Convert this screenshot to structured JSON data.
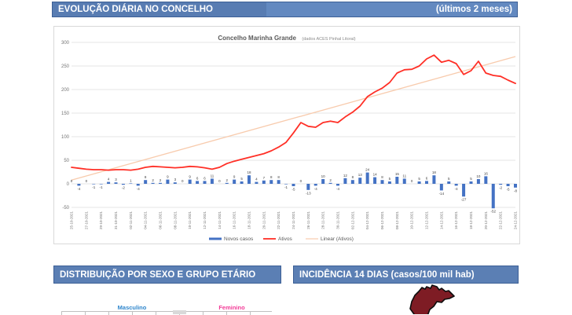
{
  "colors": {
    "header_blue": "#5b7fb4",
    "header_border": "#3d6096",
    "bar_blue": "#4472c4",
    "line_red": "#ff2f26",
    "trend_peach": "#f8cbad",
    "map_dark_red": "#7e1c24",
    "male_blue": "#2f86cc",
    "female_pink": "#f23b97",
    "gridline": "#e6e6e6",
    "axis_text": "#737373"
  },
  "top_header": {
    "title": "EVOLUÇÃO DIÁRIA NO CONCELHO",
    "period": "(últimos 2 meses)"
  },
  "chart": {
    "title": "Concelho Marinha Grande",
    "subtitle": "(dados ACES Pinhal Litoral)"
  },
  "chart_data": {
    "type": "combo",
    "x": [
      "25-10-2021",
      "26-10-2021",
      "27-10-2021",
      "28-10-2021",
      "29-10-2021",
      "30-10-2021",
      "31-10-2021",
      "01-11-2021",
      "02-11-2021",
      "03-11-2021",
      "04-11-2021",
      "05-11-2021",
      "06-11-2021",
      "07-11-2021",
      "08-11-2021",
      "09-11-2021",
      "10-11-2021",
      "11-11-2021",
      "12-11-2021",
      "13-11-2021",
      "14-11-2021",
      "15-11-2021",
      "16-11-2021",
      "17-11-2021",
      "18-11-2021",
      "19-11-2021",
      "20-11-2021",
      "21-11-2021",
      "22-11-2021",
      "23-11-2021",
      "24-11-2021",
      "25-11-2021",
      "26-11-2021",
      "27-11-2021",
      "28-11-2021",
      "29-11-2021",
      "30-11-2021",
      "01-12-2021",
      "02-12-2021",
      "03-12-2021",
      "04-12-2021",
      "05-12-2021",
      "06-12-2021",
      "07-12-2021",
      "08-12-2021",
      "09-12-2021",
      "10-12-2021",
      "11-12-2021",
      "12-12-2021",
      "13-12-2021",
      "14-12-2021",
      "15-12-2021",
      "16-12-2021",
      "17-12-2021",
      "18-12-2021",
      "19-12-2021",
      "20-12-2021",
      "21-12-2021",
      "22-12-2021",
      "23-12-2021",
      "24-12-2021"
    ],
    "series": [
      {
        "name": "Novos casos",
        "type": "bar",
        "color": "#4472c4",
        "values": [
          0,
          -4,
          0,
          -1,
          -1,
          4,
          3,
          -2,
          1,
          -4,
          8,
          2,
          2,
          9,
          3,
          0,
          9,
          6,
          6,
          11,
          0,
          2,
          9,
          5,
          18,
          4,
          7,
          8,
          8,
          -1,
          -5,
          0,
          -13,
          -4,
          10,
          2,
          -4,
          12,
          8,
          13,
          24,
          14,
          8,
          5,
          15,
          11,
          0,
          5,
          6,
          18,
          -14,
          5,
          -4,
          -27,
          5,
          10,
          16,
          -52,
          -2,
          -5,
          -8
        ]
      },
      {
        "name": "Ativos",
        "type": "line",
        "color": "#ff2f26",
        "values": [
          35,
          33,
          31,
          30,
          30,
          29,
          30,
          30,
          29,
          31,
          35,
          37,
          36,
          35,
          34,
          35,
          37,
          36,
          34,
          31,
          35,
          43,
          48,
          52,
          56,
          60,
          64,
          70,
          78,
          88,
          108,
          130,
          122,
          120,
          130,
          133,
          130,
          142,
          152,
          165,
          185,
          195,
          203,
          215,
          235,
          242,
          243,
          250,
          265,
          273,
          258,
          262,
          255,
          232,
          240,
          260,
          235,
          230,
          228,
          220,
          213
        ]
      },
      {
        "name": "Linear (Ativos)",
        "type": "linear-trendline",
        "color": "#f8cbad",
        "start_value": 8,
        "end_value": 270
      }
    ],
    "ylim": [
      -50,
      300
    ],
    "yticks": [
      300,
      250,
      200,
      150,
      100,
      50,
      0,
      -50
    ],
    "x_label_step": 2,
    "grid": true,
    "bar_data_labels": true,
    "legend_position": "bottom"
  },
  "sections": {
    "sex_age": {
      "title": "DISTRIBUIÇÃO POR SEXO E GRUPO ETÁRIO",
      "male_label": "Masculino",
      "female_label": "Feminino"
    },
    "incidence": {
      "title": "INCIDÊNCIA 14 DIAS (casos/100 mil hab)"
    }
  }
}
